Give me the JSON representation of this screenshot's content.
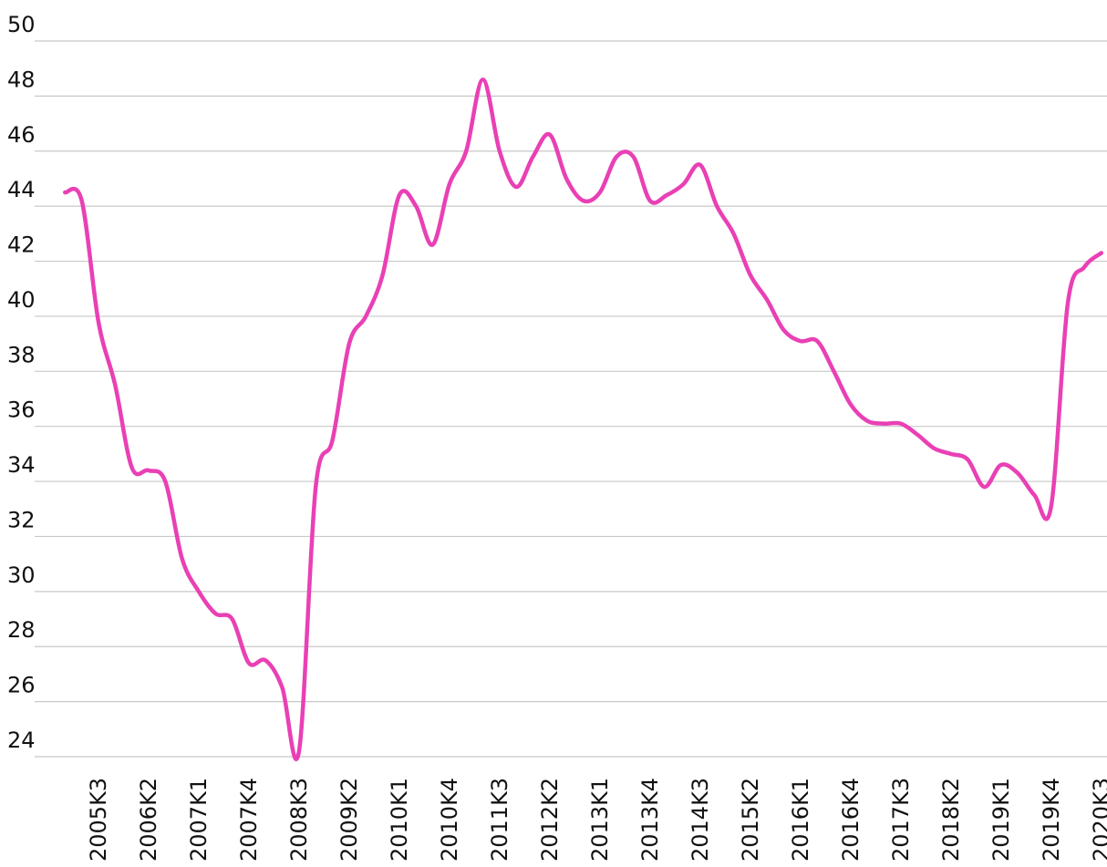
{
  "chart_data": {
    "type": "line",
    "categories": [
      null,
      null,
      "2005K3",
      null,
      null,
      "2006K2",
      null,
      null,
      "2007K1",
      null,
      null,
      "2007K4",
      null,
      null,
      "2008K3",
      null,
      null,
      "2009K2",
      null,
      null,
      "2010K1",
      null,
      null,
      "2010K4",
      null,
      null,
      "2011K3",
      null,
      null,
      "2012K2",
      null,
      null,
      "2013K1",
      null,
      null,
      "2013K4",
      null,
      null,
      "2014K3",
      null,
      null,
      "2015K2",
      null,
      null,
      "2016K1",
      null,
      null,
      "2016K4",
      null,
      null,
      "2017K3",
      null,
      null,
      "2018K2",
      null,
      null,
      "2019K1",
      null,
      null,
      "2019K4",
      null,
      null,
      "2020K3"
    ],
    "series": [
      {
        "name": null,
        "color": "#e940b5",
        "values": [
          44.5,
          44.2,
          39.8,
          37.5,
          34.5,
          34.4,
          34.0,
          31.2,
          30.0,
          29.2,
          29.0,
          27.4,
          27.5,
          26.5,
          24.2,
          33.8,
          35.5,
          39.0,
          40.0,
          41.5,
          44.4,
          44.0,
          42.6,
          44.8,
          46.0,
          48.6,
          46.0,
          44.7,
          45.8,
          46.6,
          45.0,
          44.2,
          44.5,
          45.8,
          45.8,
          44.2,
          44.4,
          44.8,
          45.5,
          44.0,
          43.0,
          41.5,
          40.6,
          39.5,
          39.1,
          39.1,
          38.0,
          36.8,
          36.2,
          36.1,
          36.1,
          35.7,
          35.2,
          35.0,
          34.8,
          33.8,
          34.6,
          34.3,
          33.5,
          33.1,
          40.5,
          41.8,
          42.3
        ]
      }
    ],
    "ylim": [
      24,
      50
    ],
    "yticks": [
      24,
      26,
      28,
      30,
      32,
      34,
      36,
      38,
      40,
      42,
      44,
      46,
      48,
      50
    ],
    "grid": true
  }
}
